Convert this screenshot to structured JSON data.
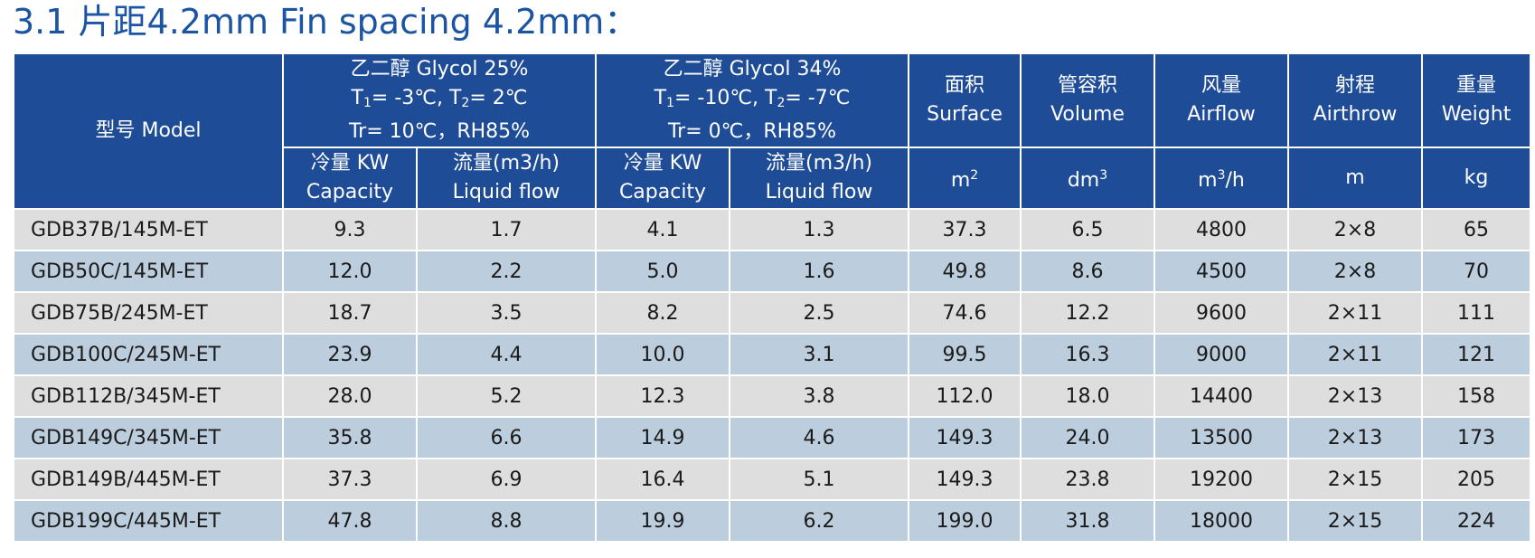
{
  "title": "3.1 片距4.2mm Fin spacing 4.2mm：",
  "header": {
    "model": "型号 Model",
    "group1": {
      "line1": "乙二醇 Glycol   25%",
      "t1_label": "T",
      "t1_sub": "1",
      "t1_value": "= -3℃, T",
      "t2_sub": "2",
      "t2_value": "= 2℃",
      "line3": "Tr= 10℃，RH85%"
    },
    "group2": {
      "line1": "乙二醇 Glycol   34%",
      "t1_label": "T",
      "t1_sub": "1",
      "t1_value": "= -10℃, T",
      "t2_sub": "2",
      "t2_value": "= -7℃",
      "line3": "Tr= 0℃，RH85%"
    },
    "surface": {
      "cn": "面积",
      "en": "Surface",
      "unit_base": "m",
      "unit_sup": "2"
    },
    "volume": {
      "cn": "管容积",
      "en": "Volume",
      "unit_base": "dm",
      "unit_sup": "3"
    },
    "airflow": {
      "cn": "风量",
      "en": "Airflow",
      "unit_base": "m",
      "unit_sup": "3",
      "unit_tail": "/h"
    },
    "airthrow": {
      "cn": "射程",
      "en": "Airthrow",
      "unit": "m"
    },
    "weight": {
      "cn": "重量",
      "en": "Weight",
      "unit": "kg"
    },
    "capacity": {
      "cn": "冷量 KW",
      "en": "Capacity"
    },
    "liquid_flow": {
      "cn": "流量(m3/h)",
      "en": "Liquid flow"
    }
  },
  "rows": [
    {
      "model": "GDB37B/145M-ET",
      "cap1": "9.3",
      "flow1": "1.7",
      "cap2": "4.1",
      "flow2": "1.3",
      "surface": "37.3",
      "volume": "6.5",
      "airflow": "4800",
      "airthrow": "2×8",
      "weight": "65"
    },
    {
      "model": "GDB50C/145M-ET",
      "cap1": "12.0",
      "flow1": "2.2",
      "cap2": "5.0",
      "flow2": "1.6",
      "surface": "49.8",
      "volume": "8.6",
      "airflow": "4500",
      "airthrow": "2×8",
      "weight": "70"
    },
    {
      "model": "GDB75B/245M-ET",
      "cap1": "18.7",
      "flow1": "3.5",
      "cap2": "8.2",
      "flow2": "2.5",
      "surface": "74.6",
      "volume": "12.2",
      "airflow": "9600",
      "airthrow": "2×11",
      "weight": "111"
    },
    {
      "model": "GDB100C/245M-ET",
      "cap1": "23.9",
      "flow1": "4.4",
      "cap2": "10.0",
      "flow2": "3.1",
      "surface": "99.5",
      "volume": "16.3",
      "airflow": "9000",
      "airthrow": "2×11",
      "weight": "121"
    },
    {
      "model": "GDB112B/345M-ET",
      "cap1": "28.0",
      "flow1": "5.2",
      "cap2": "12.3",
      "flow2": "3.8",
      "surface": "112.0",
      "volume": "18.0",
      "airflow": "14400",
      "airthrow": "2×13",
      "weight": "158"
    },
    {
      "model": "GDB149C/345M-ET",
      "cap1": "35.8",
      "flow1": "6.6",
      "cap2": "14.9",
      "flow2": "4.6",
      "surface": "149.3",
      "volume": "24.0",
      "airflow": "13500",
      "airthrow": "2×13",
      "weight": "173"
    },
    {
      "model": "GDB149B/445M-ET",
      "cap1": "37.3",
      "flow1": "6.9",
      "cap2": "16.4",
      "flow2": "5.1",
      "surface": "149.3",
      "volume": "23.8",
      "airflow": "19200",
      "airthrow": "2×15",
      "weight": "205"
    },
    {
      "model": "GDB199C/445M-ET",
      "cap1": "47.8",
      "flow1": "8.8",
      "cap2": "19.9",
      "flow2": "6.2",
      "surface": "199.0",
      "volume": "31.8",
      "airflow": "18000",
      "airthrow": "2×15",
      "weight": "224"
    }
  ],
  "colors": {
    "title": "#1b54a2",
    "header_bg": "#1f4c97",
    "row_gray": "#dedede",
    "row_blue": "#bccddd"
  }
}
